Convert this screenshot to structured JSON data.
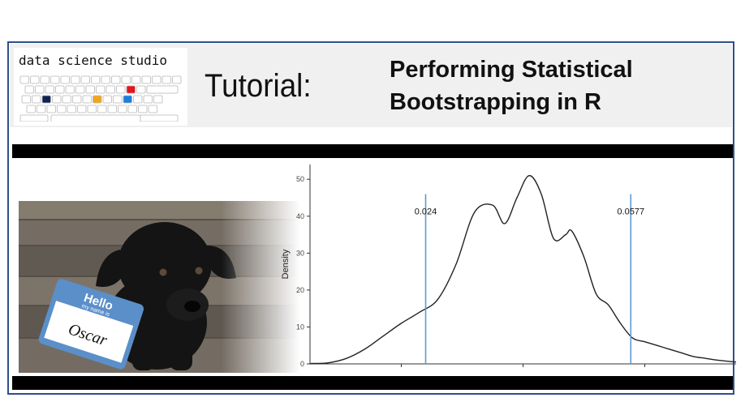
{
  "brand": {
    "name": "data science studio",
    "keyboard_highlights": [
      {
        "key": "red-key",
        "color": "#e8141b"
      },
      {
        "key": "navy-key",
        "color": "#0f2455"
      },
      {
        "key": "orange-key",
        "color": "#f3a615"
      },
      {
        "key": "blue-key",
        "color": "#1a7fe0"
      }
    ]
  },
  "header": {
    "tutorial_label": "Tutorial:",
    "title_line1": "Performing Statistical",
    "title_line2": "Bootstrapping in  R"
  },
  "photo": {
    "badge_hello": "Hello",
    "badge_subtitle": "my name is",
    "badge_name": "Oscar"
  },
  "colors": {
    "frame_border": "#2f4f8a",
    "ci_line": "#5b9bd5",
    "badge_blue": "#5b8fc9",
    "density_line": "#222222"
  },
  "chart_data": {
    "type": "line",
    "ylabel": "Density",
    "xlabel": "",
    "yticks": [
      0,
      10,
      20,
      30,
      40,
      50
    ],
    "ylim": [
      0,
      54
    ],
    "xlim": [
      0.005,
      0.075
    ],
    "grid": false,
    "series": [
      {
        "x": [
          0.005,
          0.008,
          0.011,
          0.014,
          0.017,
          0.02,
          0.023,
          0.026,
          0.029,
          0.032,
          0.035,
          0.037,
          0.039,
          0.041,
          0.043,
          0.045,
          0.047,
          0.048,
          0.05,
          0.052,
          0.054,
          0.056,
          0.058,
          0.06,
          0.062,
          0.064,
          0.066,
          0.068,
          0.07,
          0.072,
          0.075
        ],
        "y": [
          0.1,
          0.3,
          1.5,
          4,
          7.5,
          11,
          14,
          17.5,
          27,
          41,
          43,
          38,
          45,
          51,
          46,
          34,
          35,
          36,
          29,
          19,
          16,
          11,
          7,
          6,
          5,
          4,
          3,
          2,
          1.5,
          1,
          0.5
        ]
      }
    ],
    "vlines": [
      {
        "x": 0.024,
        "label": "0.024"
      },
      {
        "x": 0.0577,
        "label": "0.0577"
      }
    ]
  }
}
